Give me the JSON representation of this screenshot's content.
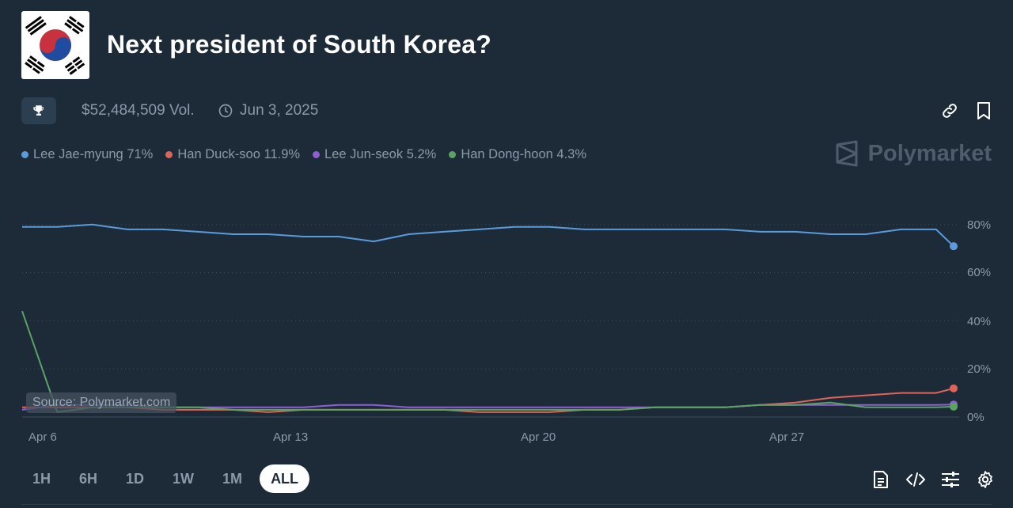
{
  "header": {
    "title": "Next president of South Korea?",
    "flag_icon": "south-korea-flag-icon"
  },
  "meta": {
    "volume": "$52,484,509 Vol.",
    "date": "Jun 3, 2025"
  },
  "brand": {
    "name": "Polymarket"
  },
  "legend": [
    {
      "label": "Lee Jae-myung 71%",
      "color": "#5b9bdb"
    },
    {
      "label": "Han Duck-soo 11.9%",
      "color": "#e0635a"
    },
    {
      "label": "Lee Jun-seok 5.2%",
      "color": "#8d5fd3"
    },
    {
      "label": "Han Dong-hoon 4.3%",
      "color": "#5aa363"
    }
  ],
  "source": "Source: Polymarket.com",
  "tabs": [
    "1H",
    "6H",
    "1D",
    "1W",
    "1M",
    "ALL"
  ],
  "active_tab": "ALL",
  "chart_data": {
    "type": "line",
    "x_tick_labels": [
      "Apr 6",
      "Apr 13",
      "Apr 20",
      "Apr 27"
    ],
    "y_tick_labels": [
      "80%",
      "60%",
      "40%",
      "20%",
      "0%"
    ],
    "ylim": [
      0,
      100
    ],
    "x": [
      0,
      1,
      2,
      3,
      4,
      5,
      6,
      7,
      8,
      9,
      10,
      11,
      12,
      13,
      14,
      15,
      16,
      17,
      18,
      19,
      20,
      21,
      22,
      23,
      24,
      25,
      26,
      26.5
    ],
    "series": [
      {
        "name": "Lee Jae-myung",
        "color": "#5b9bdb",
        "values": [
          79,
          79,
          80,
          78,
          78,
          77,
          76,
          76,
          75,
          75,
          73,
          76,
          77,
          78,
          79,
          79,
          78,
          78,
          78,
          78,
          78,
          77,
          77,
          76,
          76,
          78,
          78,
          71
        ]
      },
      {
        "name": "Han Duck-soo",
        "color": "#e0635a",
        "values": [
          4,
          4,
          4,
          4,
          3,
          3,
          3,
          2,
          3,
          3,
          3,
          3,
          3,
          2,
          2,
          2,
          3,
          3,
          4,
          4,
          4,
          5,
          6,
          8,
          9,
          10,
          10,
          11.9
        ]
      },
      {
        "name": "Lee Jun-seok",
        "color": "#8d5fd3",
        "values": [
          3,
          5,
          5,
          5,
          4,
          4,
          4,
          4,
          4,
          5,
          5,
          4,
          4,
          4,
          4,
          4,
          4,
          4,
          4,
          4,
          4,
          5,
          5,
          5,
          5,
          5,
          5,
          5.2
        ]
      },
      {
        "name": "Han Dong-hoon",
        "color": "#5aa363",
        "values": [
          44,
          2,
          4,
          4,
          4,
          4,
          3,
          3,
          3,
          3,
          3,
          3,
          3,
          3,
          3,
          3,
          3,
          3,
          4,
          4,
          4,
          5,
          5,
          6,
          4,
          4,
          4,
          4.3
        ]
      }
    ]
  }
}
